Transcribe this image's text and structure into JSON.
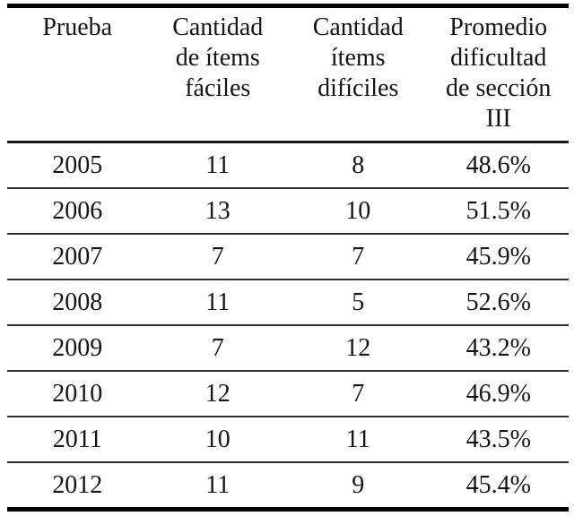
{
  "table": {
    "headers": [
      {
        "lines": [
          "Prueba"
        ]
      },
      {
        "lines": [
          "Cantidad",
          "de ítems",
          "fáciles"
        ]
      },
      {
        "lines": [
          "Cantidad",
          "ítems",
          "difíciles"
        ]
      },
      {
        "lines": [
          "Promedio",
          "dificultad",
          "de sección",
          "III"
        ]
      }
    ],
    "rows": [
      {
        "cells": [
          "2005",
          "11",
          "8",
          "48.6%"
        ]
      },
      {
        "cells": [
          "2006",
          "13",
          "10",
          "51.5%"
        ]
      },
      {
        "cells": [
          "2007",
          "7",
          "7",
          "45.9%"
        ]
      },
      {
        "cells": [
          "2008",
          "11",
          "5",
          "52.6%"
        ]
      },
      {
        "cells": [
          "2009",
          "7",
          "12",
          "43.2%"
        ]
      },
      {
        "cells": [
          "2010",
          "12",
          "7",
          "46.9%"
        ]
      },
      {
        "cells": [
          "2011",
          "10",
          "11",
          "43.5%"
        ]
      },
      {
        "cells": [
          "2012",
          "11",
          "9",
          "45.4%"
        ]
      }
    ]
  },
  "chart_data": {
    "type": "table",
    "title": "",
    "columns": [
      "Prueba",
      "Cantidad de ítems fáciles",
      "Cantidad ítems difíciles",
      "Promedio dificultad de sección III"
    ],
    "categories": [
      "2005",
      "2006",
      "2007",
      "2008",
      "2009",
      "2010",
      "2011",
      "2012"
    ],
    "series": [
      {
        "name": "Cantidad de ítems fáciles",
        "values": [
          11,
          13,
          7,
          11,
          7,
          12,
          10,
          11
        ]
      },
      {
        "name": "Cantidad ítems difíciles",
        "values": [
          8,
          10,
          7,
          5,
          12,
          7,
          11,
          9
        ]
      },
      {
        "name": "Promedio dificultad de sección III (%)",
        "values": [
          48.6,
          51.5,
          45.9,
          52.6,
          43.2,
          46.9,
          43.5,
          45.4
        ]
      }
    ]
  },
  "colors": {
    "background": "#ffffff",
    "text": "#141414",
    "rule_heavy": "#000000",
    "rule_light": "#2e2e2e"
  }
}
